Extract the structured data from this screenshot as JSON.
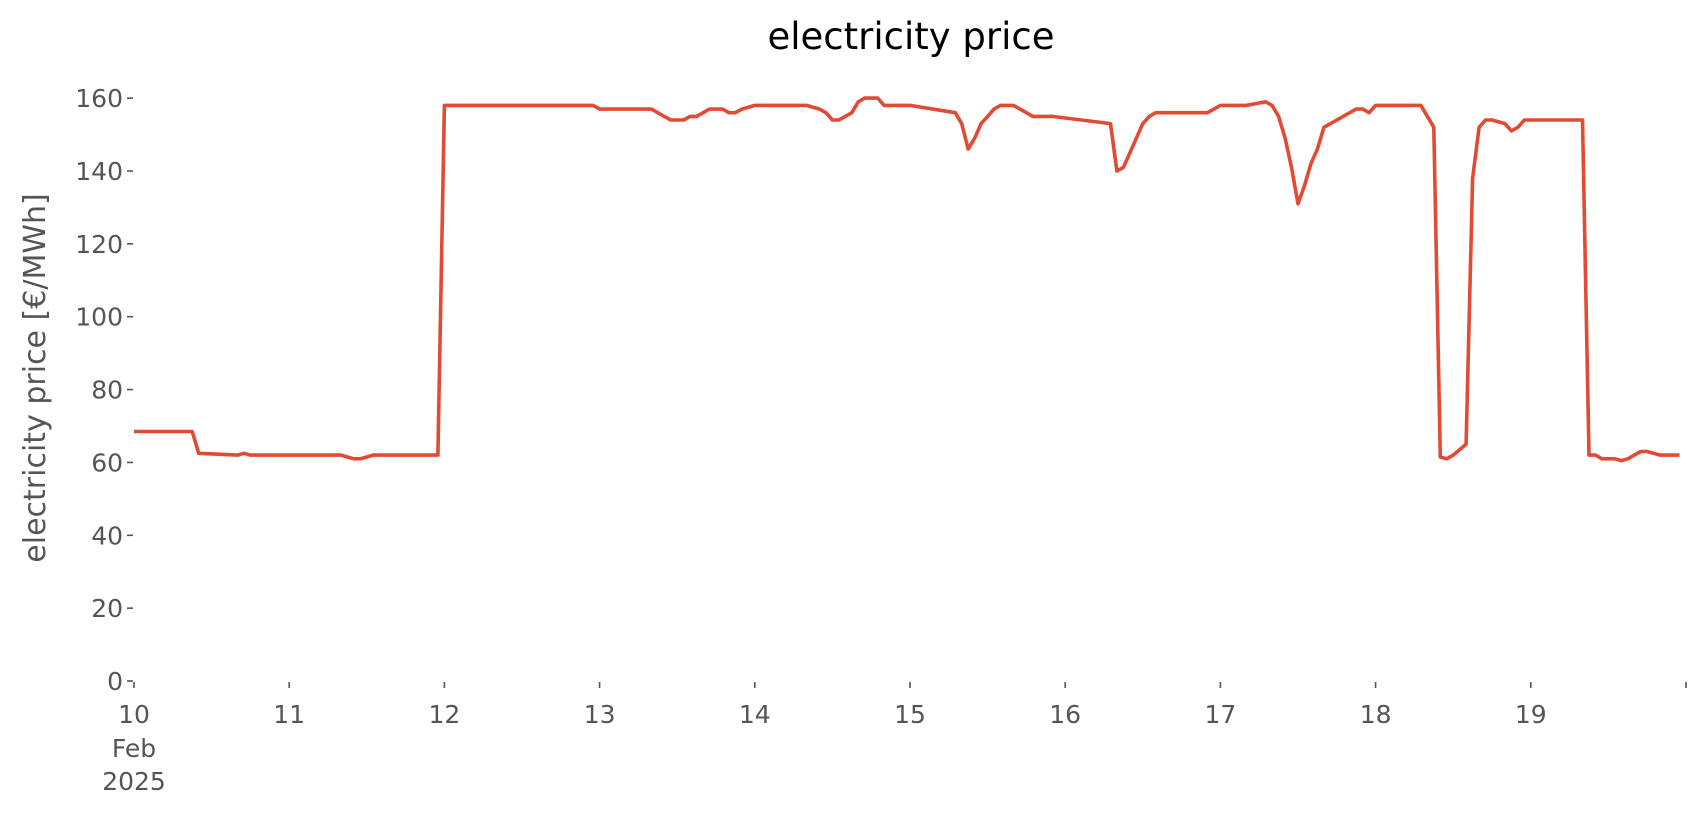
{
  "chart_data": {
    "type": "line",
    "title": "electricity price",
    "xlabel": "",
    "ylabel": "electricity price [€/MWh]",
    "xlim": [
      "2025-02-10T00:00",
      "2025-02-20T00:00"
    ],
    "ylim": [
      0,
      168
    ],
    "grid": false,
    "y_ticks": [
      "0",
      "20",
      "40",
      "60",
      "80",
      "100",
      "120",
      "140",
      "160"
    ],
    "x_ticks": [
      {
        "x": "2025-02-10",
        "label": "10",
        "sublabels": [
          "Feb",
          "2025"
        ]
      },
      {
        "x": "2025-02-11",
        "label": "11"
      },
      {
        "x": "2025-02-12",
        "label": "12"
      },
      {
        "x": "2025-02-13",
        "label": "13"
      },
      {
        "x": "2025-02-14",
        "label": "14"
      },
      {
        "x": "2025-02-15",
        "label": "15"
      },
      {
        "x": "2025-02-16",
        "label": "16"
      },
      {
        "x": "2025-02-17",
        "label": "17"
      },
      {
        "x": "2025-02-18",
        "label": "18"
      },
      {
        "x": "2025-02-19",
        "label": "19"
      },
      {
        "x": "2025-02-20",
        "label": ""
      }
    ],
    "series": [
      {
        "color": "#E24A33",
        "x": [
          "2025-02-10T00:00",
          "2025-02-10T08:00",
          "2025-02-10T09:00",
          "2025-02-10T10:00",
          "2025-02-10T16:00",
          "2025-02-10T17:00",
          "2025-02-10T18:00",
          "2025-02-11T08:00",
          "2025-02-11T09:00",
          "2025-02-11T10:00",
          "2025-02-11T11:00",
          "2025-02-11T12:00",
          "2025-02-11T13:00",
          "2025-02-11T14:00",
          "2025-02-11T16:00",
          "2025-02-11T18:00",
          "2025-02-11T20:00",
          "2025-02-11T23:00",
          "2025-02-12T00:00",
          "2025-02-12T23:00",
          "2025-02-13T00:00",
          "2025-02-13T08:00",
          "2025-02-13T09:00",
          "2025-02-13T10:00",
          "2025-02-13T11:00",
          "2025-02-13T13:00",
          "2025-02-13T14:00",
          "2025-02-13T15:00",
          "2025-02-13T16:00",
          "2025-02-13T17:00",
          "2025-02-13T18:00",
          "2025-02-13T19:00",
          "2025-02-13T20:00",
          "2025-02-13T21:00",
          "2025-02-13T22:00",
          "2025-02-14T00:00",
          "2025-02-14T08:00",
          "2025-02-14T10:00",
          "2025-02-14T11:00",
          "2025-02-14T12:00",
          "2025-02-14T13:00",
          "2025-02-14T14:00",
          "2025-02-14T15:00",
          "2025-02-14T16:00",
          "2025-02-14T17:00",
          "2025-02-14T18:00",
          "2025-02-14T19:00",
          "2025-02-14T20:00",
          "2025-02-14T21:00",
          "2025-02-15T00:00",
          "2025-02-15T07:00",
          "2025-02-15T08:00",
          "2025-02-15T09:00",
          "2025-02-15T10:00",
          "2025-02-15T11:00",
          "2025-02-15T12:00",
          "2025-02-15T13:00",
          "2025-02-15T14:00",
          "2025-02-15T15:00",
          "2025-02-15T16:00",
          "2025-02-15T17:00",
          "2025-02-15T18:00",
          "2025-02-15T19:00",
          "2025-02-15T20:00",
          "2025-02-15T21:00",
          "2025-02-15T22:00",
          "2025-02-16T07:00",
          "2025-02-16T08:00",
          "2025-02-16T09:00",
          "2025-02-16T10:00",
          "2025-02-16T11:00",
          "2025-02-16T12:00",
          "2025-02-16T13:00",
          "2025-02-16T14:00",
          "2025-02-16T15:00",
          "2025-02-16T16:00",
          "2025-02-16T17:00",
          "2025-02-16T18:00",
          "2025-02-16T20:00",
          "2025-02-16T22:00",
          "2025-02-17T00:00",
          "2025-02-17T04:00",
          "2025-02-17T07:00",
          "2025-02-17T08:00",
          "2025-02-17T09:00",
          "2025-02-17T10:00",
          "2025-02-17T11:00",
          "2025-02-17T12:00",
          "2025-02-17T13:00",
          "2025-02-17T14:00",
          "2025-02-17T15:00",
          "2025-02-17T16:00",
          "2025-02-17T21:00",
          "2025-02-17T22:00",
          "2025-02-17T23:00",
          "2025-02-18T00:00",
          "2025-02-18T07:00",
          "2025-02-18T09:00",
          "2025-02-18T10:00",
          "2025-02-18T11:00",
          "2025-02-18T12:00",
          "2025-02-18T14:00",
          "2025-02-18T15:00",
          "2025-02-18T16:00",
          "2025-02-18T17:00",
          "2025-02-18T18:00",
          "2025-02-18T20:00",
          "2025-02-18T21:00",
          "2025-02-18T22:00",
          "2025-02-18T23:00",
          "2025-02-19T00:00",
          "2025-02-19T08:00",
          "2025-02-19T09:00",
          "2025-02-19T10:00",
          "2025-02-19T11:00",
          "2025-02-19T12:00",
          "2025-02-19T13:00",
          "2025-02-19T14:00",
          "2025-02-19T15:00",
          "2025-02-19T16:00",
          "2025-02-19T17:00",
          "2025-02-19T18:00",
          "2025-02-19T20:00",
          "2025-02-19T23:00"
        ],
        "values": [
          68.5,
          68.5,
          68.5,
          62.5,
          62,
          62.5,
          62,
          62,
          61.5,
          61,
          61,
          61.5,
          62,
          62,
          62,
          62,
          62,
          62,
          158,
          158,
          157,
          157,
          156,
          155,
          154,
          154,
          155,
          155,
          156,
          157,
          157,
          157,
          156,
          156,
          157,
          158,
          158,
          157,
          156,
          154,
          154,
          155,
          156,
          159,
          160,
          160,
          160,
          158,
          158,
          158,
          156,
          153,
          146,
          149,
          153,
          155,
          157,
          158,
          158,
          158,
          157,
          156,
          155,
          155,
          155,
          155,
          153,
          140,
          141,
          145,
          149,
          153,
          155,
          156,
          156,
          156,
          156,
          156,
          156,
          156,
          158,
          158,
          159,
          158,
          155,
          149,
          141,
          131,
          136,
          142,
          146,
          152,
          157,
          157,
          156,
          158,
          158,
          152,
          61.5,
          61,
          62,
          65,
          138,
          152,
          154,
          154,
          153,
          151,
          152,
          154,
          154,
          154,
          62,
          62,
          61,
          61,
          61,
          60.5,
          61,
          62,
          63,
          63,
          62,
          62
        ]
      }
    ]
  }
}
